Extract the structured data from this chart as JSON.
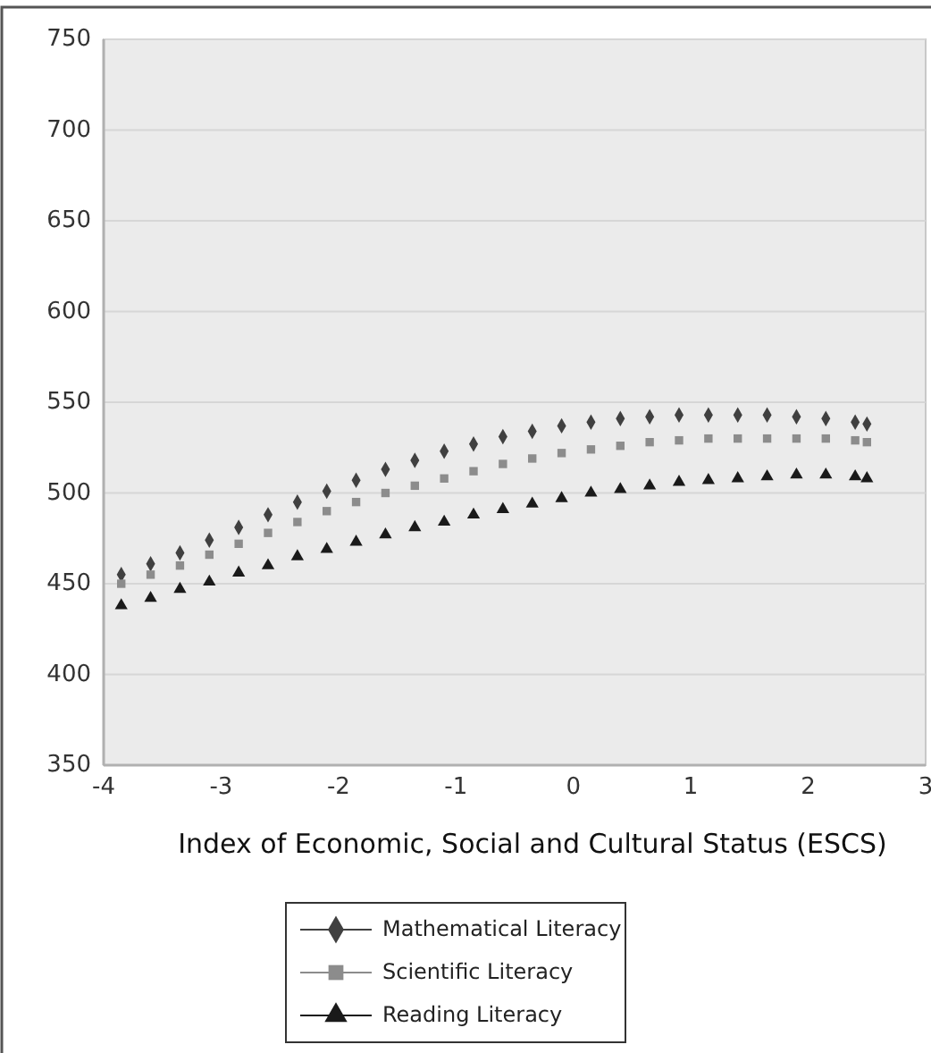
{
  "chart_data": {
    "type": "scatter",
    "xlabel": "Index of Economic, Social and Cultural Status (ESCS)",
    "x": [
      -3.85,
      -3.6,
      -3.35,
      -3.1,
      -2.85,
      -2.6,
      -2.35,
      -2.1,
      -1.85,
      -1.6,
      -1.35,
      -1.1,
      -0.85,
      -0.6,
      -0.35,
      -0.1,
      0.15,
      0.4,
      0.65,
      0.9,
      1.15,
      1.4,
      1.65,
      1.9,
      2.15,
      2.4,
      2.5
    ],
    "series": [
      {
        "name": "Mathematical Literacy",
        "color": "#404040",
        "marker": "diamond",
        "values": [
          455,
          461,
          467,
          474,
          481,
          488,
          495,
          501,
          507,
          513,
          518,
          523,
          527,
          531,
          534,
          537,
          539,
          541,
          542,
          543,
          543,
          543,
          543,
          542,
          541,
          539,
          538
        ]
      },
      {
        "name": "Scientific Literacy",
        "color": "#8c8c8c",
        "marker": "square",
        "values": [
          450,
          455,
          460,
          466,
          472,
          478,
          484,
          490,
          495,
          500,
          504,
          508,
          512,
          516,
          519,
          522,
          524,
          526,
          528,
          529,
          530,
          530,
          530,
          530,
          530,
          529,
          528
        ]
      },
      {
        "name": "Reading Literacy",
        "color": "#1a1a1a",
        "marker": "triangle",
        "values": [
          438,
          442,
          447,
          451,
          456,
          460,
          465,
          469,
          473,
          477,
          481,
          484,
          488,
          491,
          494,
          497,
          500,
          502,
          504,
          506,
          507,
          508,
          509,
          510,
          510,
          509,
          508
        ]
      }
    ],
    "xlim": [
      -4,
      3
    ],
    "xticks": [
      -4,
      -3,
      -2,
      -1,
      0,
      1,
      2,
      3
    ],
    "ylim": [
      350,
      750
    ],
    "yticks": [
      350,
      400,
      450,
      500,
      550,
      600,
      650,
      700,
      750
    ],
    "grid": "y",
    "legend": "bottom"
  }
}
